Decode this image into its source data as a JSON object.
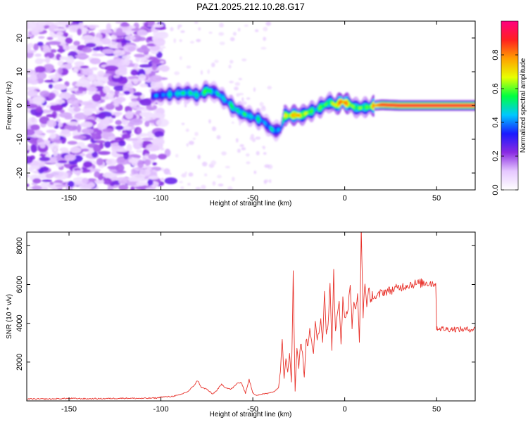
{
  "title": "PAZ1.2025.212.10.28.G17",
  "chart_data": [
    {
      "type": "heatmap",
      "xlabel": "Height of straight line (km)",
      "ylabel": "Frequency (Hz)",
      "xlim": [
        -173,
        71
      ],
      "ylim": [
        -25,
        25
      ],
      "x_ticks": [
        -150,
        -100,
        -50,
        0,
        50
      ],
      "y_ticks": [
        -20,
        -10,
        0,
        10,
        20
      ],
      "colorbar": {
        "label": "Normalized spectral amplitude",
        "range": [
          0,
          1
        ],
        "ticks": [
          0.0,
          0.2,
          0.4,
          0.6,
          0.8
        ],
        "tick_labels": [
          "0.0",
          "0.2",
          "0.4",
          "0.6",
          "0.8"
        ],
        "colors": [
          "#ffffff",
          "#e6c8ff",
          "#8a2be2",
          "#1a1aff",
          "#00c8ff",
          "#00ff40",
          "#e8ff00",
          "#ffa000",
          "#ff2020",
          "#ff0080"
        ]
      },
      "ridge": {
        "x": [
          -105,
          -98,
          -92,
          -85,
          -80,
          -75,
          -70,
          -65,
          -60,
          -55,
          -50,
          -45,
          -42,
          -40,
          -38,
          -35,
          -33,
          -30,
          -27,
          -24,
          -20,
          -17,
          -13,
          -10,
          -8,
          -5,
          -2,
          0,
          2,
          5,
          8,
          10,
          13,
          16,
          20,
          30,
          40,
          50,
          60,
          71
        ],
        "freq": [
          2.8,
          3.2,
          3.5,
          3.8,
          3.0,
          4.5,
          3.8,
          1.5,
          -1.0,
          -2.5,
          -3.5,
          -4.5,
          -6.0,
          -7.0,
          -7.5,
          -7.0,
          -3.0,
          -3.0,
          -2.8,
          -3.0,
          -2.0,
          -1.5,
          -0.5,
          0.5,
          1.0,
          0.0,
          1.2,
          0.8,
          0.5,
          -0.5,
          -0.8,
          -0.5,
          -0.5,
          0.0,
          0.2,
          0.0,
          0.0,
          0.0,
          0.0,
          0.0
        ],
        "amplitude": [
          0.35,
          0.4,
          0.45,
          0.5,
          0.45,
          0.55,
          0.45,
          0.45,
          0.5,
          0.5,
          0.45,
          0.45,
          0.4,
          0.45,
          0.45,
          0.4,
          0.6,
          0.7,
          0.75,
          0.7,
          0.6,
          0.5,
          0.55,
          0.55,
          0.6,
          0.65,
          0.85,
          0.8,
          0.65,
          0.6,
          0.55,
          0.55,
          0.6,
          0.75,
          0.9,
          0.92,
          0.92,
          0.92,
          0.92,
          0.92
        ]
      }
    },
    {
      "type": "line",
      "xlabel": "Height of straight line (km)",
      "ylabel": "SNR (10 * v/v)",
      "xlim": [
        -173,
        71
      ],
      "ylim": [
        0,
        8700
      ],
      "x_ticks": [
        -150,
        -100,
        -50,
        0,
        50
      ],
      "y_ticks": [
        2000,
        4000,
        6000,
        8000
      ],
      "color": "#e8312a",
      "series": [
        {
          "x": [
            -173,
            -160,
            -150,
            -140,
            -130,
            -120,
            -110,
            -102,
            -100,
            -95,
            -90,
            -85,
            -82,
            -80,
            -78,
            -75,
            -72,
            -70,
            -67,
            -65,
            -62,
            -60,
            -58,
            -56,
            -54,
            -52,
            -50,
            -48,
            -45,
            -42,
            -40,
            -38,
            -36,
            -35,
            -34,
            -33,
            -32,
            -31,
            -30,
            -29,
            -28,
            -27,
            -26,
            -25,
            -24,
            -23,
            -22,
            -21,
            -20,
            -19,
            -18,
            -17,
            -16,
            -15,
            -14,
            -13,
            -12,
            -11,
            -10,
            -9,
            -8,
            -7,
            -6,
            -5,
            -4,
            -3,
            -2,
            -1,
            0,
            1,
            2,
            3,
            4,
            5,
            6,
            7,
            8,
            9,
            10,
            11,
            12,
            13,
            14,
            15,
            17,
            20,
            25,
            30,
            35,
            40,
            45,
            48,
            49.5,
            50,
            50.5,
            55,
            60,
            65,
            71
          ],
          "y": [
            100,
            100,
            130,
            110,
            120,
            140,
            130,
            150,
            200,
            220,
            300,
            500,
            800,
            1050,
            700,
            600,
            350,
            500,
            850,
            700,
            600,
            750,
            950,
            900,
            400,
            1100,
            400,
            300,
            350,
            380,
            450,
            500,
            700,
            1500,
            3300,
            1200,
            2200,
            1500,
            2500,
            1000,
            6500,
            500,
            2800,
            1700,
            3000,
            2500,
            1200,
            3200,
            2800,
            3800,
            3100,
            2400,
            4000,
            3200,
            3600,
            4200,
            3000,
            5800,
            3500,
            4000,
            6000,
            2700,
            6600,
            3500,
            4400,
            5100,
            3000,
            5200,
            4200,
            4600,
            4800,
            6200,
            3800,
            5200,
            4600,
            5400,
            3000,
            8700,
            4400,
            6200,
            4800,
            6000,
            4900,
            5500,
            5300,
            5600,
            5700,
            5850,
            6000,
            6050,
            6100,
            6050,
            6100,
            3800,
            3750,
            3700,
            3700,
            3680,
            3700
          ]
        }
      ]
    }
  ]
}
